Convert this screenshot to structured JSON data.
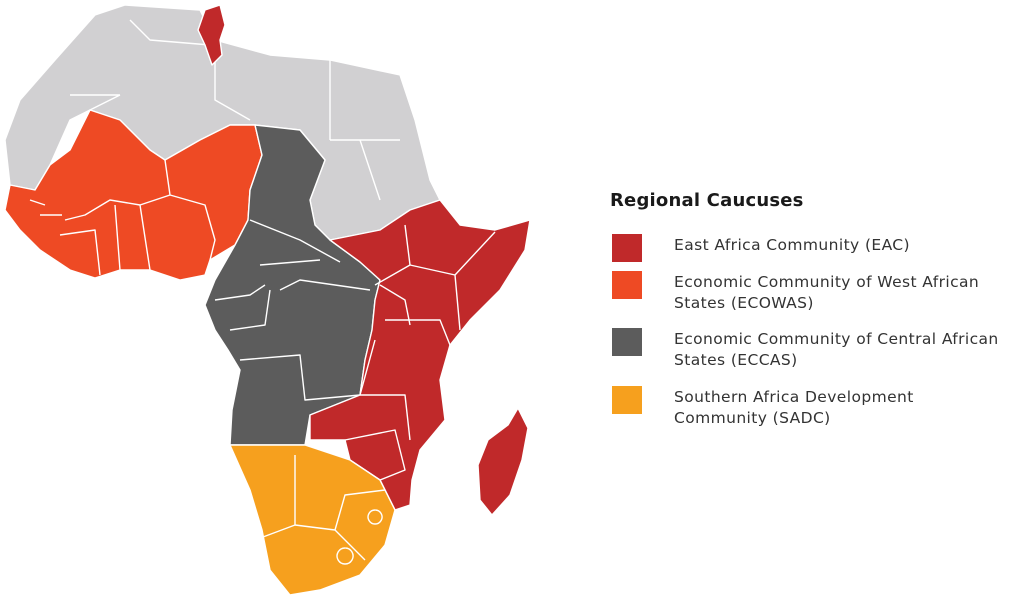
{
  "legend": {
    "title": "Regional Caucuses",
    "items": [
      {
        "label": "East Africa Community (EAC)",
        "color": "#c0292a"
      },
      {
        "label": "Economic Community of West African States (ECOWAS)",
        "color": "#ee4a24"
      },
      {
        "label": "Economic Community of Central African States (ECCAS)",
        "color": "#5c5c5c"
      },
      {
        "label": "Southern Africa Development Community (SADC)",
        "color": "#f6a01e"
      }
    ]
  },
  "map": {
    "other_color": "#d1d0d2",
    "regions": [
      {
        "name": "North Africa (other)",
        "group": "other"
      },
      {
        "name": "Tunisia",
        "group": "EAC"
      },
      {
        "name": "West Africa",
        "group": "ECOWAS"
      },
      {
        "name": "Central Africa",
        "group": "ECCAS"
      },
      {
        "name": "East Africa",
        "group": "EAC"
      },
      {
        "name": "Madagascar",
        "group": "EAC"
      },
      {
        "name": "Southern Africa",
        "group": "SADC"
      }
    ]
  }
}
